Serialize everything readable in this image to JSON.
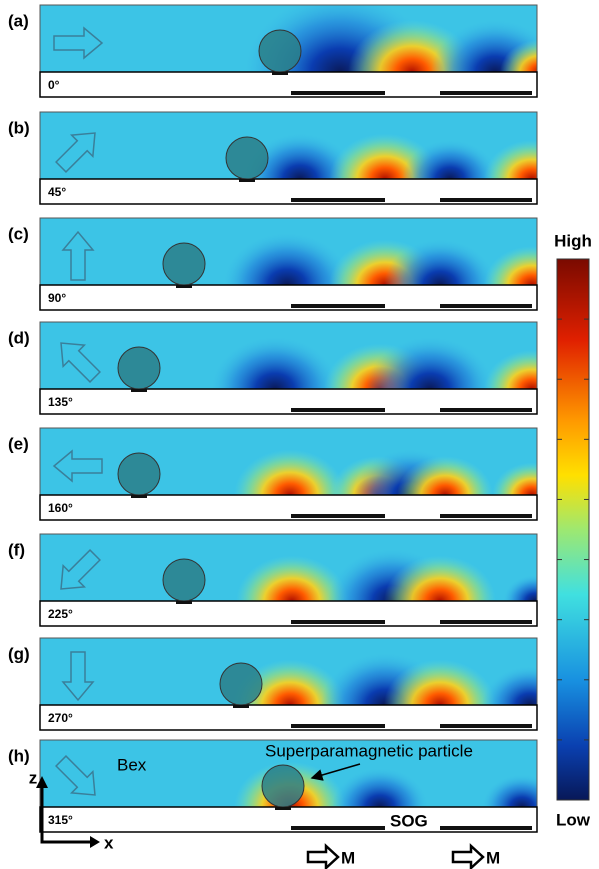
{
  "panels": [
    {
      "label": "(a)",
      "angle": "0°"
    },
    {
      "label": "(b)",
      "angle": "45°"
    },
    {
      "label": "(c)",
      "angle": "90°"
    },
    {
      "label": "(d)",
      "angle": "135°"
    },
    {
      "label": "(e)",
      "angle": "160°"
    },
    {
      "label": "(f)",
      "angle": "225°"
    },
    {
      "label": "(g)",
      "angle": "270°"
    },
    {
      "label": "(h)",
      "angle": "315°"
    }
  ],
  "annotations": {
    "bex": "Bex",
    "particle": "Superparamagnetic particle",
    "sog": "SOG",
    "z": "z",
    "x": "x"
  },
  "magnetization": [
    "M",
    "M"
  ],
  "colorbar": {
    "high": "High",
    "low": "Low"
  }
}
